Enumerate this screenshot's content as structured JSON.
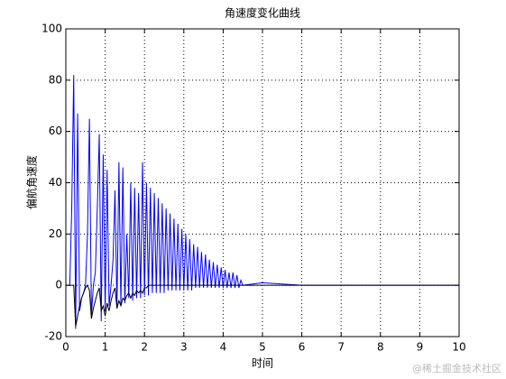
{
  "chart_data": {
    "type": "line",
    "title": "角速度变化曲线",
    "xlabel": "时间",
    "ylabel": "偏航角速度",
    "x": [
      0,
      0.05,
      0.1,
      0.15,
      0.2,
      0.25,
      0.3,
      0.35,
      0.4,
      0.45,
      0.5,
      0.55,
      0.6,
      0.65,
      0.7,
      0.75,
      0.8,
      0.85,
      0.9,
      0.95,
      1,
      1.05,
      1.1,
      1.15,
      1.2,
      1.25,
      1.3,
      1.35,
      1.4,
      1.45,
      1.5,
      1.55,
      1.6,
      1.65,
      1.7,
      1.75,
      1.8,
      1.85,
      1.9,
      1.95,
      2,
      2.05,
      2.1,
      2.15,
      2.2,
      2.25,
      2.3,
      2.35,
      2.4,
      2.45,
      2.5,
      2.55,
      2.6,
      2.65,
      2.7,
      2.75,
      2.8,
      2.85,
      2.9,
      2.95,
      3,
      3.05,
      3.1,
      3.15,
      3.2,
      3.25,
      3.3,
      3.35,
      3.4,
      3.45,
      3.5,
      3.55,
      3.6,
      3.65,
      3.7,
      3.75,
      3.8,
      3.85,
      3.9,
      3.95,
      4,
      4.05,
      4.1,
      4.15,
      4.2,
      4.25,
      4.3,
      4.35,
      4.4,
      4.45,
      4.5,
      5,
      5.5,
      6,
      6.5,
      7,
      7.5,
      8,
      8.5,
      9,
      9.5,
      10
    ],
    "series": [
      {
        "color": "#0000ff",
        "values": [
          0,
          0,
          0,
          30,
          82,
          -17,
          67,
          -10,
          -5,
          -3,
          0,
          20,
          65,
          -12,
          0,
          5,
          30,
          59,
          -14,
          51,
          -10,
          45,
          -8,
          0,
          10,
          37,
          -9,
          48,
          -8,
          46,
          -7,
          20,
          -5,
          40,
          -6,
          38,
          -5,
          36,
          -5,
          48,
          -4,
          40,
          -4,
          38,
          -3,
          36,
          -3,
          34,
          -3,
          32,
          -3,
          30,
          -2,
          28,
          -2,
          26,
          -2,
          24,
          -2,
          22,
          -2,
          20,
          -2,
          18,
          -2,
          16,
          -1,
          15,
          -1,
          13,
          -1,
          12,
          -1,
          10,
          -1,
          9,
          -1,
          8,
          -1,
          7,
          -1,
          6,
          -1,
          5,
          -1,
          5,
          -1,
          4,
          -1,
          2,
          0,
          1,
          0.5,
          0,
          0,
          0,
          0,
          0,
          0,
          0,
          0,
          0
        ]
      },
      {
        "color": "#000000",
        "values": [
          0,
          0,
          0,
          0,
          0,
          -16,
          -12,
          -8,
          -5,
          -3,
          -1,
          0,
          -2,
          -13,
          -9,
          -6,
          -3,
          -1,
          -10,
          -8,
          -12,
          -7,
          -10,
          -6,
          -3,
          -1,
          -9,
          -6,
          -8,
          -5,
          -6,
          -4,
          -3,
          -5,
          -3,
          -4,
          -2,
          -3,
          -2,
          -3,
          -1,
          -1,
          0,
          0,
          0,
          0,
          0,
          0,
          0,
          0,
          0,
          0,
          0,
          0,
          0,
          0,
          0,
          0,
          0,
          0,
          0,
          0,
          0,
          0,
          0,
          0,
          0,
          0,
          0,
          0,
          0,
          0,
          0,
          0,
          0,
          0,
          0,
          0,
          0,
          0,
          0,
          0,
          0,
          0,
          0,
          0,
          0,
          0,
          0,
          0,
          0,
          0,
          0,
          0,
          0,
          0,
          0,
          0,
          0,
          0,
          0,
          0
        ]
      }
    ],
    "xlim": [
      0,
      10
    ],
    "xticks": [
      0,
      1,
      2,
      3,
      4,
      5,
      6,
      7,
      8,
      9,
      10
    ],
    "ylim": [
      -20,
      100
    ],
    "yticks": [
      -20,
      0,
      20,
      40,
      60,
      80,
      100
    ],
    "grid": true
  },
  "watermark": "@稀土掘金技术社区"
}
